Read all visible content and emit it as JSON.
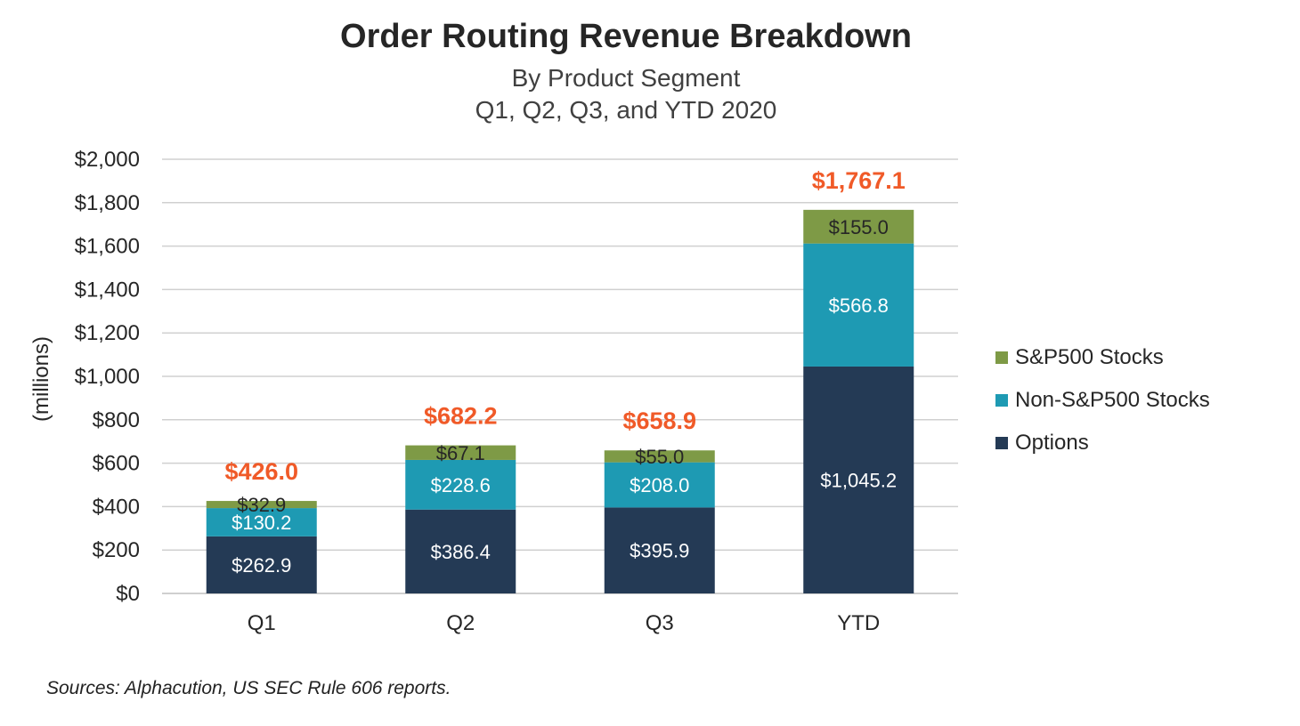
{
  "chart_data": {
    "type": "bar",
    "stacked": true,
    "title": "Order Routing Revenue Breakdown",
    "subtitle": "By Product Segment",
    "subtitle2": "Q1, Q2, Q3, and YTD 2020",
    "ylabel": "(millions)",
    "xlabel": "",
    "ylim": [
      0,
      2000
    ],
    "yticks": [
      0,
      200,
      400,
      600,
      800,
      1000,
      1200,
      1400,
      1600,
      1800,
      2000
    ],
    "ytick_labels": [
      "$0",
      "$200",
      "$400",
      "$600",
      "$800",
      "$1,000",
      "$1,200",
      "$1,400",
      "$1,600",
      "$1,800",
      "$2,000"
    ],
    "grid": true,
    "legend_position": "right",
    "categories": [
      "Q1",
      "Q2",
      "Q3",
      "YTD"
    ],
    "series": [
      {
        "name": "Options",
        "color": "#243A55",
        "values": [
          262.9,
          386.4,
          395.9,
          1045.2
        ],
        "labels": [
          "$262.9",
          "$386.4",
          "$395.9",
          "$1,045.2"
        ],
        "label_color": "#ffffff"
      },
      {
        "name": "Non-S&P500 Stocks",
        "color": "#1E9AB3",
        "values": [
          130.2,
          228.6,
          208.0,
          566.8
        ],
        "labels": [
          "$130.2",
          "$228.6",
          "$208.0",
          "$566.8"
        ],
        "label_color": "#ffffff"
      },
      {
        "name": "S&P500 Stocks",
        "color": "#7E9A46",
        "values": [
          32.9,
          67.1,
          55.0,
          155.0
        ],
        "labels": [
          "$32.9",
          "$67.1",
          "$55.0",
          "$155.0"
        ],
        "label_color": "#262626"
      }
    ],
    "totals": [
      426.0,
      682.2,
      658.9,
      1767.1
    ],
    "total_labels": [
      "$426.0",
      "$682.2",
      "$658.9",
      "$1,767.1"
    ],
    "total_color": "#F05A28",
    "source": "Sources: Alphacution, US SEC Rule 606 reports."
  }
}
